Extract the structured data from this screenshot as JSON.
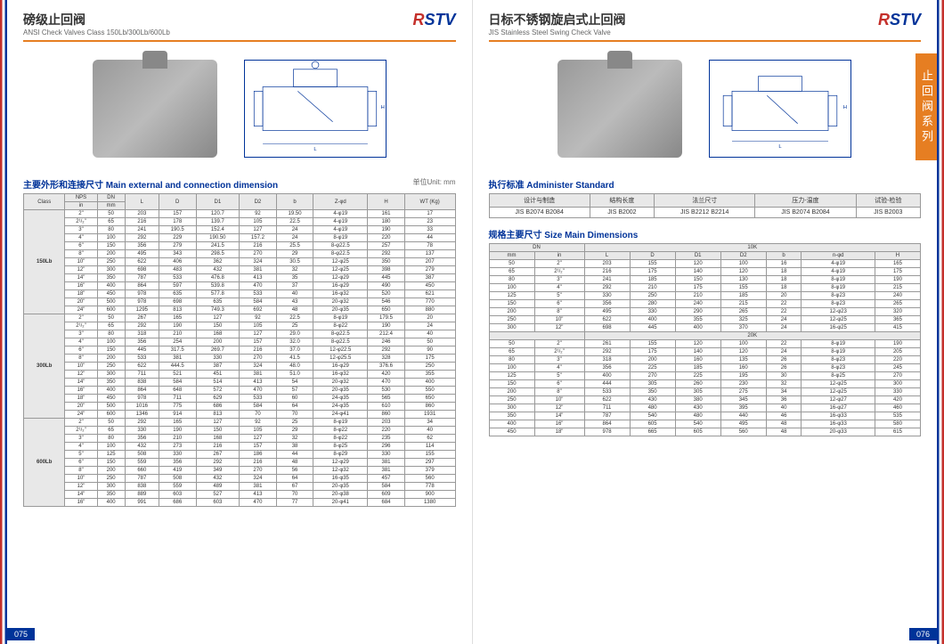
{
  "tab_text": "止回阀系列",
  "logo_r": "R",
  "logo_stv": "STV",
  "left": {
    "title_cn": "磅级止回阀",
    "title_en": "ANSI Check Valves  Class 150Lb/300Lb/600Lb",
    "section_title": "主要外形和连接尺寸 Main external and connection dimension",
    "unit_label": "单位Unit: mm",
    "page_num": "075",
    "table": {
      "headers_row1": [
        "Class",
        "NPS",
        "DN",
        "L",
        "D",
        "D1",
        "D2",
        "b",
        "Z-φd",
        "H",
        "WT (Kg)"
      ],
      "headers_row2": [
        "in",
        "mm"
      ],
      "groups": [
        {
          "class": "150Lb",
          "rows": [
            [
              "2\"",
              "50",
              "203",
              "157",
              "120.7",
              "92",
              "19.50",
              "4-φ19",
              "161",
              "17"
            ],
            [
              "2¹/₂\"",
              "65",
              "216",
              "178",
              "139.7",
              "105",
              "22.5",
              "4-φ19",
              "180",
              "23"
            ],
            [
              "3\"",
              "80",
              "241",
              "190.5",
              "152.4",
              "127",
              "24",
              "4-φ19",
              "190",
              "33"
            ],
            [
              "4\"",
              "100",
              "292",
              "229",
              "190.50",
              "157.2",
              "24",
              "8-φ19",
              "220",
              "44"
            ],
            [
              "6\"",
              "150",
              "356",
              "279",
              "241.5",
              "216",
              "25.5",
              "8-φ22.5",
              "257",
              "78"
            ],
            [
              "8\"",
              "200",
              "495",
              "343",
              "298.5",
              "270",
              "29",
              "8-φ22.5",
              "292",
              "137"
            ],
            [
              "10\"",
              "250",
              "622",
              "406",
              "362",
              "324",
              "30.5",
              "12-φ25",
              "350",
              "207"
            ],
            [
              "12\"",
              "300",
              "698",
              "483",
              "432",
              "381",
              "32",
              "12-φ25",
              "398",
              "279"
            ],
            [
              "14\"",
              "350",
              "787",
              "533",
              "476.8",
              "413",
              "35",
              "12-φ29",
              "445",
              "387"
            ],
            [
              "16\"",
              "400",
              "864",
              "597",
              "539.8",
              "470",
              "37",
              "16-φ29",
              "490",
              "450"
            ],
            [
              "18\"",
              "450",
              "978",
              "635",
              "577.8",
              "533",
              "40",
              "16-φ32",
              "520",
              "621"
            ],
            [
              "20\"",
              "500",
              "978",
              "698",
              "635",
              "584",
              "43",
              "20-φ32",
              "546",
              "770"
            ],
            [
              "24\"",
              "600",
              "1295",
              "813",
              "749.3",
              "692",
              "48",
              "20-φ35",
              "650",
              "880"
            ]
          ]
        },
        {
          "class": "300Lb",
          "rows": [
            [
              "2\"",
              "50",
              "267",
              "165",
              "127",
              "92",
              "22.5",
              "8-φ19",
              "179.5",
              "20"
            ],
            [
              "2¹/₂\"",
              "65",
              "292",
              "190",
              "150",
              "105",
              "25",
              "8-φ22",
              "190",
              "24"
            ],
            [
              "3\"",
              "80",
              "318",
              "210",
              "168",
              "127",
              "29.0",
              "8-φ22.5",
              "212.4",
              "40"
            ],
            [
              "4\"",
              "100",
              "356",
              "254",
              "200",
              "157",
              "32.0",
              "8-φ22.5",
              "246",
              "50"
            ],
            [
              "6\"",
              "150",
              "445",
              "317.5",
              "269.7",
              "216",
              "37.0",
              "12-φ22.5",
              "292",
              "90"
            ],
            [
              "8\"",
              "200",
              "533",
              "381",
              "330",
              "270",
              "41.5",
              "12-φ25.5",
              "328",
              "175"
            ],
            [
              "10\"",
              "250",
              "622",
              "444.5",
              "387",
              "324",
              "48.0",
              "16-φ29",
              "376.6",
              "250"
            ],
            [
              "12\"",
              "300",
              "711",
              "521",
              "451",
              "381",
              "51.0",
              "16-φ32",
              "420",
              "355"
            ],
            [
              "14\"",
              "350",
              "838",
              "584",
              "514",
              "413",
              "54",
              "20-φ32",
              "470",
              "400"
            ],
            [
              "16\"",
              "400",
              "864",
              "648",
              "572",
              "470",
              "57",
              "20-φ35",
              "530",
              "550"
            ],
            [
              "18\"",
              "450",
              "978",
              "711",
              "629",
              "533",
              "60",
              "24-φ35",
              "565",
              "650"
            ],
            [
              "20\"",
              "500",
              "1016",
              "775",
              "686",
              "584",
              "64",
              "24-φ35",
              "610",
              "860"
            ],
            [
              "24\"",
              "600",
              "1346",
              "914",
              "813",
              "70",
              "70",
              "24-φ41",
              "860",
              "1931"
            ]
          ]
        },
        {
          "class": "600Lb",
          "rows": [
            [
              "2\"",
              "50",
              "292",
              "165",
              "127",
              "92",
              "25",
              "8-φ19",
              "203",
              "34"
            ],
            [
              "2¹/₂\"",
              "65",
              "330",
              "190",
              "150",
              "105",
              "29",
              "8-φ22",
              "220",
              "40"
            ],
            [
              "3\"",
              "80",
              "356",
              "210",
              "168",
              "127",
              "32",
              "8-φ22",
              "235",
              "62"
            ],
            [
              "4\"",
              "100",
              "432",
              "273",
              "216",
              "157",
              "38",
              "8-φ25",
              "296",
              "114"
            ],
            [
              "5\"",
              "125",
              "508",
              "330",
              "267",
              "186",
              "44",
              "8-φ29",
              "330",
              "155"
            ],
            [
              "6\"",
              "150",
              "559",
              "356",
              "292",
              "216",
              "48",
              "12-φ29",
              "381",
              "297"
            ],
            [
              "8\"",
              "200",
              "660",
              "419",
              "349",
              "270",
              "56",
              "12-φ32",
              "381",
              "379"
            ],
            [
              "10\"",
              "250",
              "787",
              "508",
              "432",
              "324",
              "64",
              "16-φ35",
              "457",
              "560"
            ],
            [
              "12\"",
              "300",
              "838",
              "559",
              "489",
              "381",
              "67",
              "20-φ35",
              "584",
              "778"
            ],
            [
              "14\"",
              "350",
              "889",
              "603",
              "527",
              "413",
              "70",
              "20-φ38",
              "609",
              "900"
            ],
            [
              "16\"",
              "400",
              "991",
              "686",
              "603",
              "470",
              "77",
              "20-φ41",
              "684",
              "1380"
            ]
          ]
        }
      ]
    }
  },
  "right": {
    "title_cn": "日标不锈钢旋启式止回阀",
    "title_en": "JIS Stainless Steel Swing Check Valve",
    "page_num": "076",
    "std_title": "执行标准 Administer Standard",
    "std_headers": [
      "设计与制造",
      "结构长度",
      "法兰尺寸",
      "压力-温度",
      "试验-检验"
    ],
    "std_row": [
      "JIS B2074 B2084",
      "JIS B2002",
      "JIS B2212 B2214",
      "JIS B2074 B2084",
      "JIS B2003"
    ],
    "dim_title": "规格主要尺寸 Size Main Dimensions",
    "dim_headers1": [
      "DN",
      "10K"
    ],
    "dim_headers2": [
      "mm",
      "in",
      "L",
      "D",
      "D1",
      "D2",
      "b",
      "n-φd",
      "H"
    ],
    "dim_groups": [
      {
        "k": "10K",
        "rows": [
          [
            "50",
            "2\"",
            "203",
            "155",
            "120",
            "100",
            "16",
            "4-φ19",
            "165"
          ],
          [
            "65",
            "2¹/₂\"",
            "216",
            "175",
            "140",
            "120",
            "18",
            "4-φ19",
            "175"
          ],
          [
            "80",
            "3\"",
            "241",
            "185",
            "150",
            "130",
            "18",
            "8-φ19",
            "190"
          ],
          [
            "100",
            "4\"",
            "292",
            "210",
            "175",
            "155",
            "18",
            "8-φ19",
            "215"
          ],
          [
            "125",
            "5\"",
            "330",
            "250",
            "210",
            "185",
            "20",
            "8-φ23",
            "240"
          ],
          [
            "150",
            "6\"",
            "356",
            "280",
            "240",
            "215",
            "22",
            "8-φ23",
            "265"
          ],
          [
            "200",
            "8\"",
            "495",
            "330",
            "290",
            "265",
            "22",
            "12-φ23",
            "320"
          ],
          [
            "250",
            "10\"",
            "622",
            "400",
            "355",
            "325",
            "24",
            "12-φ25",
            "365"
          ],
          [
            "300",
            "12\"",
            "698",
            "445",
            "400",
            "370",
            "24",
            "16-φ25",
            "415"
          ]
        ]
      },
      {
        "k": "20K",
        "rows": [
          [
            "50",
            "2\"",
            "261",
            "155",
            "120",
            "100",
            "22",
            "8-φ19",
            "190"
          ],
          [
            "65",
            "2¹/₂\"",
            "292",
            "175",
            "140",
            "120",
            "24",
            "8-φ19",
            "205"
          ],
          [
            "80",
            "3\"",
            "318",
            "200",
            "160",
            "135",
            "26",
            "8-φ23",
            "220"
          ],
          [
            "100",
            "4\"",
            "356",
            "225",
            "185",
            "160",
            "26",
            "8-φ23",
            "245"
          ],
          [
            "125",
            "5\"",
            "400",
            "270",
            "225",
            "195",
            "30",
            "8-φ25",
            "270"
          ],
          [
            "150",
            "6\"",
            "444",
            "305",
            "260",
            "230",
            "32",
            "12-φ25",
            "300"
          ],
          [
            "200",
            "8\"",
            "533",
            "350",
            "305",
            "275",
            "34",
            "12-φ25",
            "330"
          ],
          [
            "250",
            "10\"",
            "622",
            "430",
            "380",
            "345",
            "36",
            "12-φ27",
            "420"
          ],
          [
            "300",
            "12\"",
            "711",
            "480",
            "430",
            "395",
            "40",
            "16-φ27",
            "460"
          ],
          [
            "350",
            "14\"",
            "787",
            "540",
            "480",
            "440",
            "46",
            "16-φ33",
            "535"
          ],
          [
            "400",
            "16\"",
            "864",
            "605",
            "540",
            "495",
            "48",
            "16-φ33",
            "580"
          ],
          [
            "450",
            "18\"",
            "978",
            "665",
            "605",
            "560",
            "48",
            "20-φ33",
            "615"
          ]
        ]
      }
    ]
  }
}
